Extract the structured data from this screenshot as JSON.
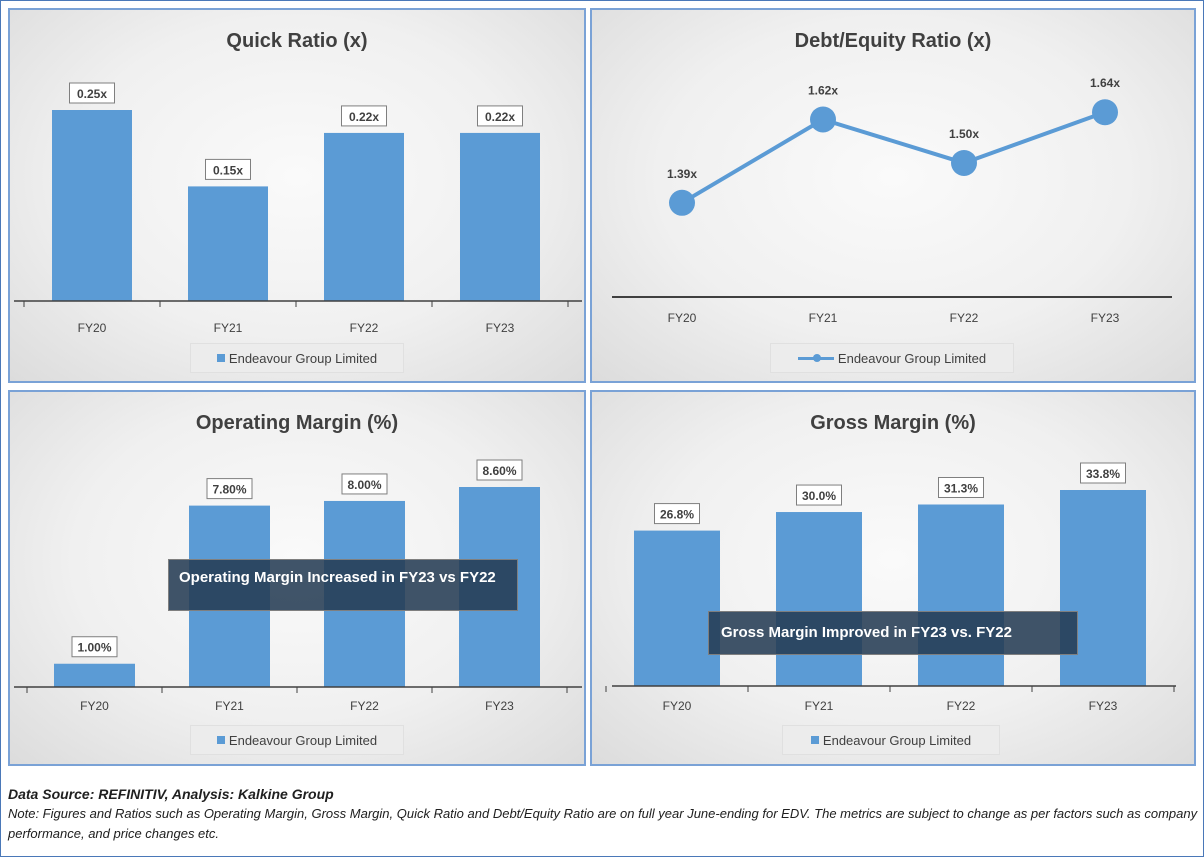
{
  "chart_data": [
    {
      "id": "quick",
      "type": "bar",
      "title": "Quick Ratio (x)",
      "categories": [
        "FY20",
        "FY21",
        "FY22",
        "FY23"
      ],
      "series": [
        {
          "name": "Endeavour Group Limited",
          "values": [
            0.25,
            0.15,
            0.22,
            0.22
          ]
        }
      ],
      "data_labels": [
        "0.25x",
        "0.15x",
        "0.22x",
        "0.22x"
      ],
      "ylim": [
        0,
        0.25
      ],
      "legend": "bottom",
      "color": "#5b9bd5"
    },
    {
      "id": "de",
      "type": "line",
      "title": "Debt/Equity Ratio (x)",
      "categories": [
        "FY20",
        "FY21",
        "FY22",
        "FY23"
      ],
      "series": [
        {
          "name": "Endeavour Group Limited",
          "values": [
            1.39,
            1.62,
            1.5,
            1.64
          ]
        }
      ],
      "data_labels": [
        "1.39x",
        "1.62x",
        "1.50x",
        "1.64x"
      ],
      "ylim": [
        1.13,
        1.66
      ],
      "legend": "bottom",
      "color": "#5b9bd5"
    },
    {
      "id": "om",
      "type": "bar",
      "title": "Operating Margin (%)",
      "categories": [
        "FY20",
        "FY21",
        "FY22",
        "FY23"
      ],
      "series": [
        {
          "name": "Endeavour Group Limited",
          "values": [
            1.0,
            7.8,
            8.0,
            8.6
          ]
        }
      ],
      "data_labels": [
        "1.00%",
        "7.80%",
        "8.00%",
        "8.60%"
      ],
      "ylim": [
        0,
        8.6
      ],
      "legend": "bottom",
      "annotation": "Operating Margin Increased in FY23 vs FY22",
      "color": "#5b9bd5"
    },
    {
      "id": "gm",
      "type": "bar",
      "title": "Gross Margin (%)",
      "categories": [
        "FY20",
        "FY21",
        "FY22",
        "FY23"
      ],
      "series": [
        {
          "name": "Endeavour Group Limited",
          "values": [
            26.8,
            30.0,
            31.3,
            33.8
          ]
        }
      ],
      "data_labels": [
        "26.8%",
        "30.0%",
        "31.3%",
        "33.8%"
      ],
      "ylim": [
        0,
        33.8
      ],
      "legend": "bottom",
      "annotation": "Gross Margin Improved in FY23 vs. FY22",
      "color": "#5b9bd5"
    }
  ],
  "footer": {
    "source": "Data Source: REFINITIV, Analysis: Kalkine Group",
    "note": "Note: Figures and Ratios such as Operating Margin, Gross Margin, Quick Ratio and Debt/Equity Ratio are on full year June-ending for EDV. The metrics are subject to change as per factors such as company performance, and price changes etc."
  }
}
